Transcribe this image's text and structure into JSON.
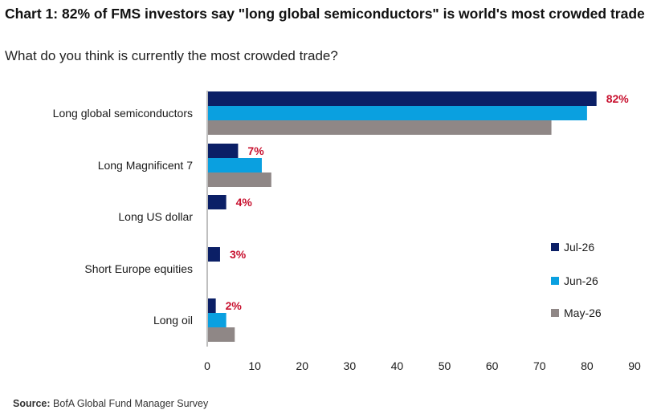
{
  "title": "Chart 1: 82% of FMS investors say \"long global semiconductors\" is world's most crowded trade",
  "subtitle": "What do you think is currently the most crowded trade?",
  "source": {
    "label": "Source:",
    "text": "BofA Global Fund Manager Survey"
  },
  "colors": {
    "data_label": "#c8102e",
    "axis": "#7f7f7f"
  },
  "chart_data": {
    "type": "bar",
    "orientation": "horizontal",
    "categories": [
      "Long global semiconductors",
      "Long Magnificent 7",
      "Long US dollar",
      "Short Europe equities",
      "Long oil"
    ],
    "series": [
      {
        "name": "Jul-26",
        "color": "#0b1f66",
        "values": [
          82,
          6.5,
          4,
          2.7,
          1.8
        ]
      },
      {
        "name": "Jun-26",
        "color": "#0aa0e0",
        "values": [
          80,
          11.5,
          0,
          0,
          4
        ]
      },
      {
        "name": "May-26",
        "color": "#8f8786",
        "values": [
          72.5,
          13.5,
          0,
          0,
          5.8
        ]
      }
    ],
    "data_labels": [
      "82%",
      "7%",
      "4%",
      "3%",
      "2%"
    ],
    "xlim": [
      0,
      90
    ],
    "xticks": [
      0,
      10,
      20,
      30,
      40,
      50,
      60,
      70,
      80,
      90
    ],
    "legend_position": "right",
    "grid": false
  }
}
